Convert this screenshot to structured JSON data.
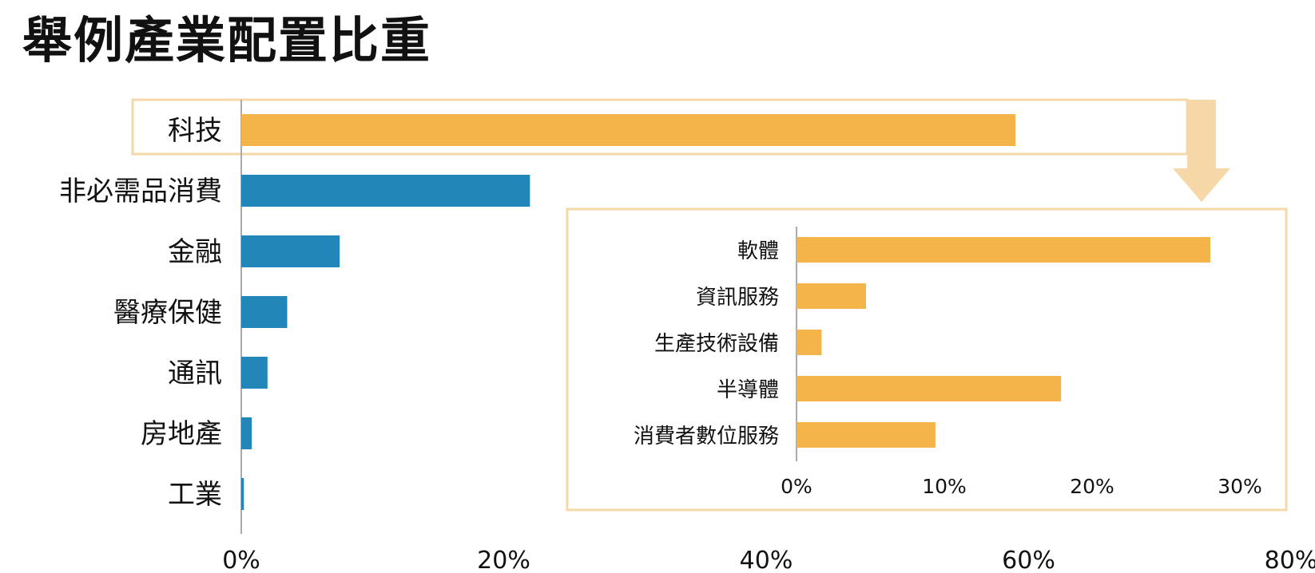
{
  "title": "舉例產業配置比重",
  "colors": {
    "main_bar": "#2386b8",
    "highlight_bar": "#f4b44a",
    "highlight_frame": "#f6d7a8",
    "axis": "#aaaaaa"
  },
  "chart_data": [
    {
      "type": "bar",
      "orientation": "horizontal",
      "categories": [
        "科技",
        "非必需品消費",
        "金融",
        "醫療保健",
        "通訊",
        "房地產",
        "工業"
      ],
      "values": [
        59,
        22,
        7.5,
        3.5,
        2,
        0.8,
        0.2
      ],
      "xlim": [
        0,
        80
      ],
      "xticks": [
        "0%",
        "20%",
        "40%",
        "60%",
        "80%"
      ],
      "highlight_category": "科技",
      "grid": false,
      "legend": "none"
    },
    {
      "type": "bar",
      "orientation": "horizontal",
      "categories": [
        "軟體",
        "資訊服務",
        "生產技術設備",
        "半導體",
        "消費者數位服務"
      ],
      "values": [
        28,
        4.7,
        1.7,
        17.9,
        9.4
      ],
      "xlim": [
        0,
        30
      ],
      "xticks": [
        "0%",
        "10%",
        "20%",
        "30%"
      ],
      "grid": false,
      "legend": "none"
    }
  ]
}
